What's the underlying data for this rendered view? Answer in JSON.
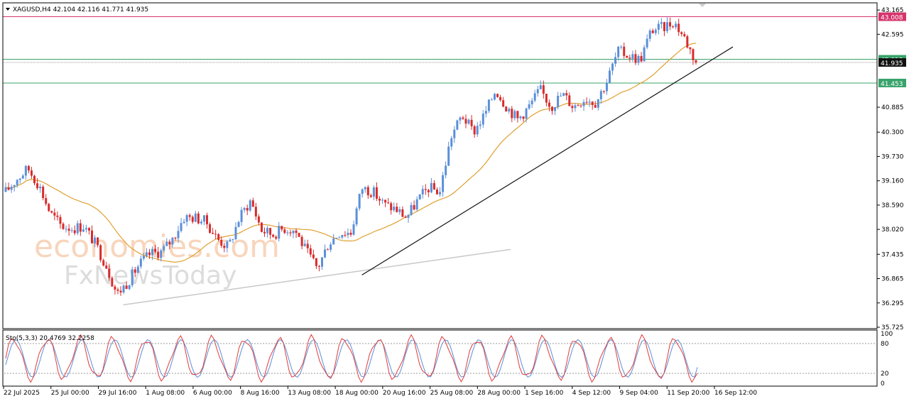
{
  "header": {
    "symbol_line": "XAGUSD,H4  42.104 42.116 41.771 41.935",
    "dropdown_icon": "triangle-down-icon"
  },
  "watermark": {
    "line1": "economies.com",
    "line2": "FxNewsToday"
  },
  "stochastic": {
    "label": "Sto(5,3,3) 20.4769 32.2258",
    "ticks": [
      "100",
      "80",
      "20",
      "0"
    ],
    "levels": [
      80,
      20
    ],
    "k_color": "#e23b3b",
    "d_color": "#5b8fd9"
  },
  "price_axis": {
    "ticks": [
      "43.165",
      "42.595",
      "40.885",
      "40.300",
      "39.730",
      "39.160",
      "38.590",
      "38.020",
      "37.435",
      "36.865",
      "36.295",
      "35.725"
    ]
  },
  "levels": [
    {
      "label": "43.008",
      "value": 43.008,
      "color": "#d6336c",
      "text_color": "#ffffff"
    },
    {
      "label": "42.010",
      "value": 42.01,
      "color": "#38a36b",
      "text_color": "#ffffff"
    },
    {
      "label": "41.935",
      "value": 41.935,
      "color": "#111111",
      "text_color": "#ffffff"
    },
    {
      "label": "41.453",
      "value": 41.453,
      "color": "#38a36b",
      "text_color": "#ffffff"
    }
  ],
  "time_axis": {
    "labels": [
      "22 Jul 2025",
      "25 Jul 00:00",
      "29 Jul 16:00",
      "1 Aug 08:00",
      "6 Aug 00:00",
      "8 Aug 16:00",
      "13 Aug 08:00",
      "18 Aug 00:00",
      "20 Aug 16:00",
      "25 Aug 08:00",
      "28 Aug 00:00",
      "1 Sep 16:00",
      "4 Sep 12:00",
      "9 Sep 04:00",
      "11 Sep 20:00",
      "16 Sep 12:00"
    ]
  },
  "colors": {
    "bull": "#5b8fd9",
    "bear": "#d92b2b",
    "ma": "#e0a030",
    "trend_main": "#111111",
    "trend_old": "#c8c8c8"
  },
  "chart_data": {
    "type": "candlestick",
    "ylim": [
      35.725,
      43.3
    ],
    "price_path": [
      {
        "time": "22 Jul 2025",
        "close": 38.9
      },
      {
        "time": "22 Jul",
        "close": 39.2
      },
      {
        "time": "23 Jul",
        "close": 39.45
      },
      {
        "time": "24 Jul",
        "close": 39.05
      },
      {
        "time": "25 Jul 00:00",
        "close": 38.4
      },
      {
        "time": "25 Jul",
        "close": 38.1
      },
      {
        "time": "28 Jul",
        "close": 38.05
      },
      {
        "time": "28 Jul",
        "close": 38.1
      },
      {
        "time": "29 Jul",
        "close": 37.7
      },
      {
        "time": "29 Jul 16:00",
        "close": 37.2
      },
      {
        "time": "29 Jul",
        "close": 36.5
      },
      {
        "time": "30 Jul",
        "close": 36.8
      },
      {
        "time": "1 Aug 08:00",
        "close": 37.2
      },
      {
        "time": "1 Aug",
        "close": 37.45
      },
      {
        "time": "5 Aug",
        "close": 37.5
      },
      {
        "time": "6 Aug 00:00",
        "close": 37.8
      },
      {
        "time": "6 Aug",
        "close": 38.3
      },
      {
        "time": "7 Aug",
        "close": 38.3
      },
      {
        "time": "8 Aug",
        "close": 38.2
      },
      {
        "time": "8 Aug 16:00",
        "close": 37.8
      },
      {
        "time": "11 Aug",
        "close": 37.6
      },
      {
        "time": "12 Aug",
        "close": 38.3
      },
      {
        "time": "13 Aug 08:00",
        "close": 38.7
      },
      {
        "time": "13 Aug",
        "close": 38.0
      },
      {
        "time": "14 Aug",
        "close": 37.9
      },
      {
        "time": "15 Aug",
        "close": 38.05
      },
      {
        "time": "18 Aug 00:00",
        "close": 38.0
      },
      {
        "time": "18 Aug",
        "close": 37.5
      },
      {
        "time": "19 Aug",
        "close": 37.1
      },
      {
        "time": "20 Aug",
        "close": 37.7
      },
      {
        "time": "20 Aug 16:00",
        "close": 37.95
      },
      {
        "time": "21 Aug",
        "close": 37.95
      },
      {
        "time": "22 Aug",
        "close": 39.0
      },
      {
        "time": "22 Aug",
        "close": 38.9
      },
      {
        "time": "25 Aug 08:00",
        "close": 38.6
      },
      {
        "time": "26 Aug",
        "close": 38.5
      },
      {
        "time": "27 Aug",
        "close": 38.3
      },
      {
        "time": "27 Aug",
        "close": 38.7
      },
      {
        "time": "28 Aug 00:00",
        "close": 39.0
      },
      {
        "time": "29 Aug",
        "close": 38.9
      },
      {
        "time": "29 Aug",
        "close": 40.2
      },
      {
        "time": "1 Sep",
        "close": 40.7
      },
      {
        "time": "1 Sep 16:00",
        "close": 40.3
      },
      {
        "time": "2 Sep",
        "close": 40.7
      },
      {
        "time": "3 Sep",
        "close": 41.3
      },
      {
        "time": "3 Sep",
        "close": 40.9
      },
      {
        "time": "4 Sep 12:00",
        "close": 40.6
      },
      {
        "time": "5 Sep",
        "close": 40.9
      },
      {
        "time": "5 Sep",
        "close": 41.3
      },
      {
        "time": "8 Sep",
        "close": 40.9
      },
      {
        "time": "8 Sep",
        "close": 41.2
      },
      {
        "time": "9 Sep 04:00",
        "close": 40.9
      },
      {
        "time": "9 Sep",
        "close": 41.1
      },
      {
        "time": "10 Sep",
        "close": 41.0
      },
      {
        "time": "11 Sep",
        "close": 41.5
      },
      {
        "time": "11 Sep",
        "close": 42.2
      },
      {
        "time": "11 Sep 20:00",
        "close": 42.1
      },
      {
        "time": "12 Sep",
        "close": 42.0
      },
      {
        "time": "15 Sep",
        "close": 42.7
      },
      {
        "time": "15 Sep",
        "close": 42.75
      },
      {
        "time": "16 Sep",
        "close": 42.9
      },
      {
        "time": "16 Sep 12:00",
        "close": 42.5
      },
      {
        "time": "16 Sep",
        "close": 41.935
      }
    ],
    "trendlines": [
      {
        "name": "rising support",
        "from": {
          "time": "19 Aug",
          "price": 36.95
        },
        "to": {
          "time": "17 Sep",
          "price": 42.3
        }
      },
      {
        "name": "older support",
        "from": {
          "time": "29 Jul",
          "price": 36.25
        },
        "to": {
          "time": "28 Aug",
          "price": 37.55
        }
      }
    ],
    "grid": false
  }
}
